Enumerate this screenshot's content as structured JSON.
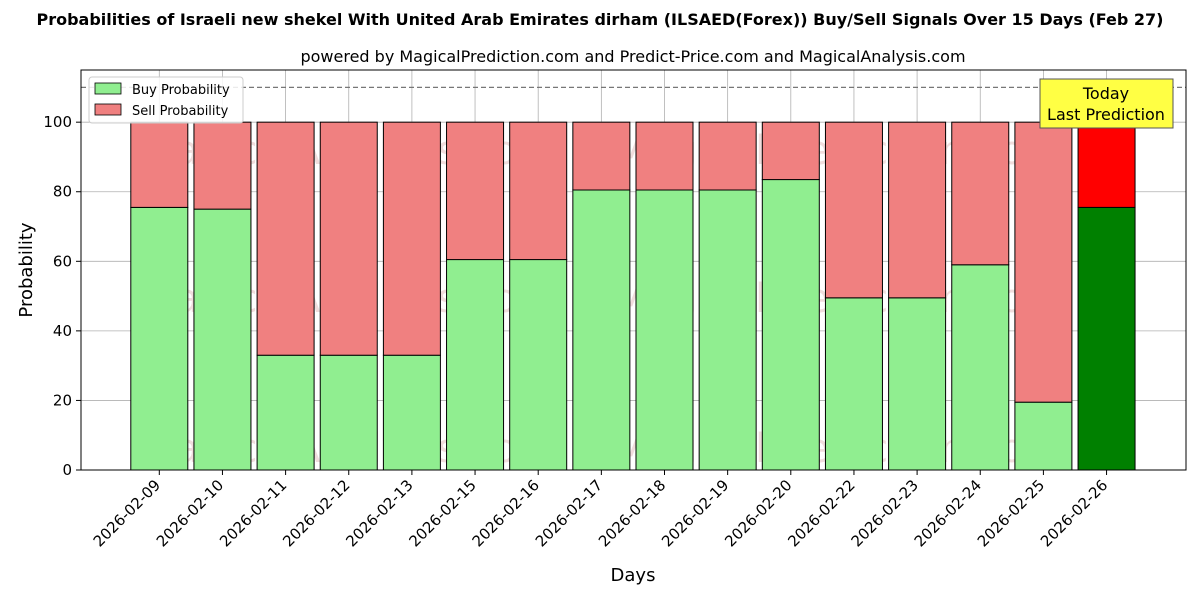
{
  "chart_data": {
    "type": "bar",
    "stacked": true,
    "title": "Probabilities of Israeli new shekel With United Arab Emirates dirham (ILSAED(Forex)) Buy/Sell Signals Over 15 Days (Feb 27)",
    "subtitle": "powered by MagicalPrediction.com and Predict-Price.com and MagicalAnalysis.com",
    "xlabel": "Days",
    "ylabel": "Probability",
    "ylim": [
      0,
      115
    ],
    "yticks": [
      0,
      20,
      40,
      60,
      80,
      100
    ],
    "reference_line": 110,
    "grid": true,
    "legend_position": "top-left",
    "categories": [
      "2026-02-09",
      "2026-02-10",
      "2026-02-11",
      "2026-02-12",
      "2026-02-13",
      "2026-02-15",
      "2026-02-16",
      "2026-02-17",
      "2026-02-18",
      "2026-02-19",
      "2026-02-20",
      "2026-02-22",
      "2026-02-23",
      "2026-02-24",
      "2026-02-25",
      "2026-02-26"
    ],
    "series": [
      {
        "name": "Buy Probability",
        "color": "#90ee90",
        "values": [
          75.5,
          75,
          33,
          33,
          33,
          60.5,
          60.5,
          80.5,
          80.5,
          80.5,
          83.5,
          49.5,
          49.5,
          59,
          19.5,
          75.5
        ]
      },
      {
        "name": "Sell Probability",
        "color": "#f08080",
        "values": [
          24.5,
          25,
          67,
          67,
          67,
          39.5,
          39.5,
          19.5,
          19.5,
          19.5,
          16.5,
          50.5,
          50.5,
          41,
          80.5,
          24.5
        ]
      }
    ],
    "highlight": {
      "index": 15,
      "buy_color": "#008000",
      "sell_color": "#ff0000"
    },
    "annotation": {
      "line1": "Today",
      "line2": "Last Prediction",
      "color": "#ffff44"
    },
    "watermarks": [
      "MagicalAnalysis.com",
      "MagicalPrediction.com"
    ]
  }
}
